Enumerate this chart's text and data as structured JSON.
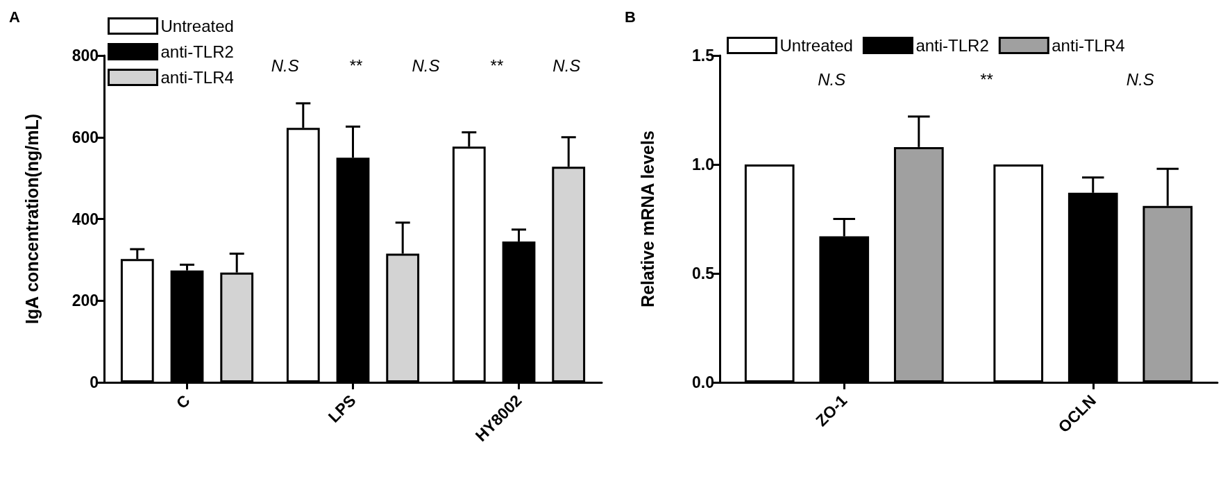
{
  "chart_data": [
    {
      "type": "bar",
      "title": "A",
      "ylabel": "IgA concentration(ng/mL)",
      "categories": [
        "C",
        "LPS",
        "HY8002"
      ],
      "series": [
        {
          "name": "Untreated",
          "color": "#ffffff",
          "values": [
            302,
            623,
            577
          ],
          "errors": [
            [
              302,
              326
            ],
            [
              623,
              683
            ],
            [
              577,
              612
            ]
          ]
        },
        {
          "name": "anti-TLR2",
          "color": "#000000",
          "values": [
            274,
            550,
            345
          ],
          "errors": [
            [
              274,
              288
            ],
            [
              550,
              626
            ],
            [
              345,
              374
            ]
          ]
        },
        {
          "name": "anti-TLR4",
          "color": "#d3d3d3",
          "values": [
            269,
            315,
            528
          ],
          "errors": [
            [
              269,
              315
            ],
            [
              315,
              391
            ],
            [
              528,
              600
            ]
          ]
        }
      ],
      "ylim": [
        0,
        800
      ],
      "yticks": [
        0,
        200,
        400,
        600,
        800
      ],
      "grid": false,
      "legend": "top left",
      "annotations": [
        "N.S",
        "**",
        "N.S",
        "**",
        "N.S"
      ]
    },
    {
      "type": "bar",
      "title": "B",
      "ylabel": "Relative mRNA levels",
      "categories": [
        "ZO-1",
        "OCLN"
      ],
      "series": [
        {
          "name": "Untreated",
          "color": "#ffffff",
          "values": [
            1.0,
            1.0
          ],
          "errors": [
            null,
            null
          ]
        },
        {
          "name": "anti-TLR2",
          "color": "#000000",
          "values": [
            0.67,
            0.87
          ],
          "errors": [
            [
              0.67,
              0.75
            ],
            [
              0.87,
              0.94
            ]
          ]
        },
        {
          "name": "anti-TLR4",
          "color": "#a0a0a0",
          "values": [
            1.08,
            0.81
          ],
          "errors": [
            [
              1.08,
              1.22
            ],
            [
              0.81,
              0.98
            ]
          ]
        }
      ],
      "ylim": [
        0,
        1.5
      ],
      "yticks": [
        {
          "value": 0,
          "label": "0.0"
        },
        0.5,
        {
          "value": 1,
          "label": "1.0"
        },
        1.5
      ],
      "grid": false,
      "legend": "top",
      "annotations": [
        "N.S",
        "**",
        "N.S"
      ]
    }
  ]
}
